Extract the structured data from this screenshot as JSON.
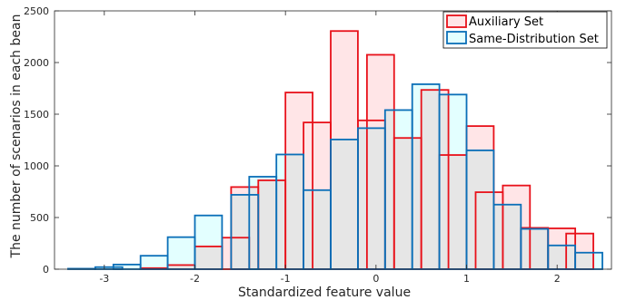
{
  "chart_data": {
    "type": "bar",
    "subtype": "overlapping-histogram",
    "title": "",
    "xlabel": "Standardized feature value",
    "ylabel": "The number of scenarios in each bean",
    "xlim": [
      -3.55,
      2.6
    ],
    "ylim": [
      0,
      2500
    ],
    "xticks": [
      -3,
      -2,
      -1,
      0,
      1,
      2
    ],
    "yticks": [
      0,
      500,
      1000,
      1500,
      2000,
      2500
    ],
    "grid": false,
    "legend_position": "top-right",
    "colors": {
      "overlap_fill": "#e6e6e6"
    },
    "series": [
      {
        "name": "Auxiliary Set",
        "edge_color": "#e8111a",
        "fill_color": "#ffe5e7",
        "bin_width": 0.3,
        "bins": [
          {
            "x0": -2.6,
            "value": 10
          },
          {
            "x0": -2.3,
            "value": 40
          },
          {
            "x0": -2.0,
            "value": 220
          },
          {
            "x0": -1.7,
            "value": 305
          },
          {
            "x0": -1.6,
            "value": 795
          },
          {
            "x0": -1.3,
            "value": 860
          },
          {
            "x0": -1.0,
            "value": 1710
          },
          {
            "x0": -0.8,
            "value": 1420
          },
          {
            "x0": -0.5,
            "value": 2305
          },
          {
            "x0": -0.2,
            "value": 1440
          },
          {
            "x0": -0.1,
            "value": 2075
          },
          {
            "x0": 0.2,
            "value": 1270
          },
          {
            "x0": 0.5,
            "value": 1735
          },
          {
            "x0": 0.7,
            "value": 1105
          },
          {
            "x0": 1.0,
            "value": 1385
          },
          {
            "x0": 1.1,
            "value": 745
          },
          {
            "x0": 1.4,
            "value": 810
          },
          {
            "x0": 1.6,
            "value": 400
          },
          {
            "x0": 1.9,
            "value": 395
          },
          {
            "x0": 2.1,
            "value": 345
          }
        ]
      },
      {
        "name": "Same-Distribution Set",
        "edge_color": "#0b6fb8",
        "fill_color": "#e3ffff",
        "bin_width": 0.3,
        "bins": [
          {
            "x0": -3.4,
            "value": 5
          },
          {
            "x0": -3.1,
            "value": 20
          },
          {
            "x0": -2.9,
            "value": 45
          },
          {
            "x0": -2.6,
            "value": 130
          },
          {
            "x0": -2.3,
            "value": 310
          },
          {
            "x0": -2.0,
            "value": 520
          },
          {
            "x0": -1.6,
            "value": 720
          },
          {
            "x0": -1.4,
            "value": 895
          },
          {
            "x0": -1.1,
            "value": 1110
          },
          {
            "x0": -0.8,
            "value": 765
          },
          {
            "x0": -0.5,
            "value": 1255
          },
          {
            "x0": -0.2,
            "value": 1365
          },
          {
            "x0": 0.1,
            "value": 1540
          },
          {
            "x0": 0.4,
            "value": 1790
          },
          {
            "x0": 0.7,
            "value": 1690
          },
          {
            "x0": 1.0,
            "value": 1150
          },
          {
            "x0": 1.3,
            "value": 625
          },
          {
            "x0": 1.6,
            "value": 390
          },
          {
            "x0": 1.9,
            "value": 230
          },
          {
            "x0": 2.2,
            "value": 160
          }
        ]
      }
    ]
  }
}
